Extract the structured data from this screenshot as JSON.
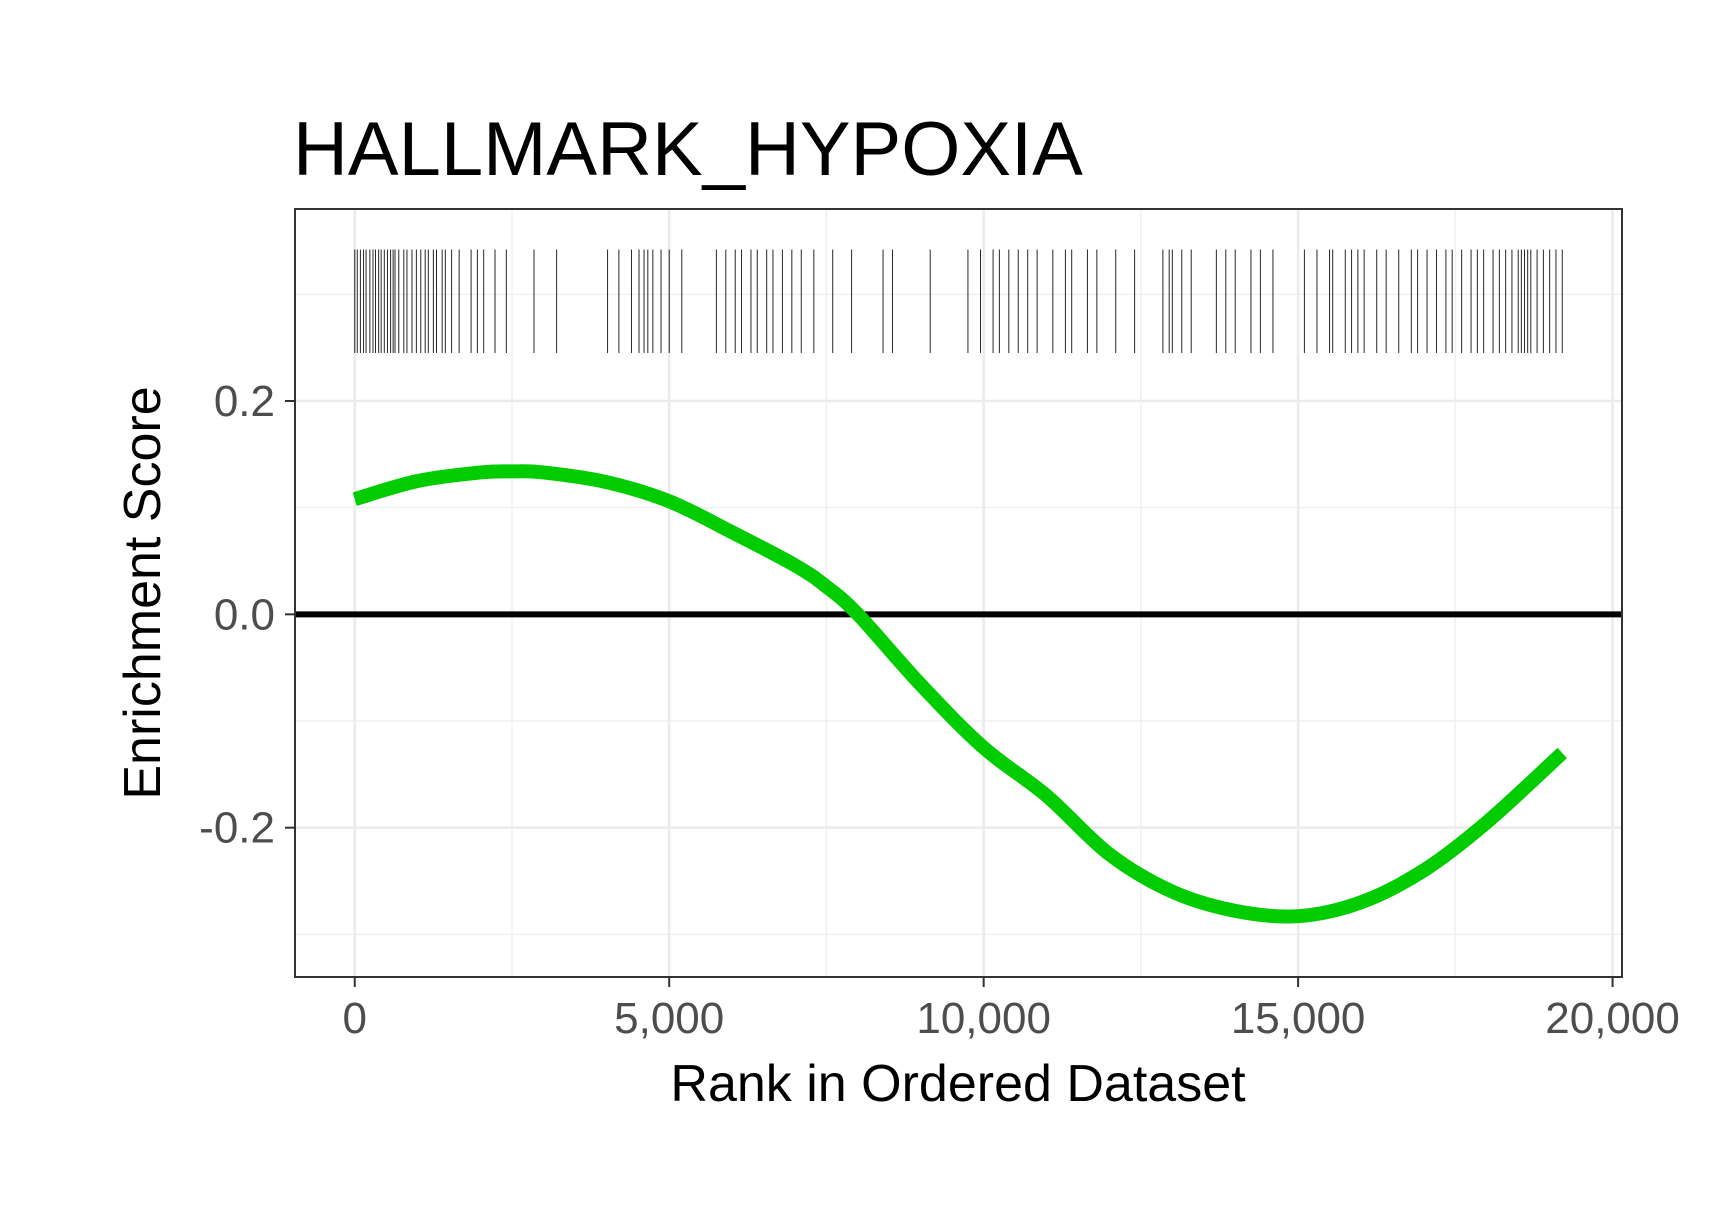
{
  "chart_data": {
    "type": "line",
    "title": "HALLMARK_HYPOXIA",
    "xlabel": "Rank in Ordered Dataset",
    "ylabel": "Enrichment Score",
    "xlim": [
      -950,
      20150
    ],
    "ylim": [
      -0.34,
      0.38
    ],
    "x_ticks": [
      0,
      5000,
      10000,
      15000,
      20000
    ],
    "x_tick_labels": [
      "0",
      "5,000",
      "10,000",
      "15,000",
      "20,000"
    ],
    "y_ticks": [
      -0.2,
      0.0,
      0.2
    ],
    "y_tick_labels": [
      "-0.2",
      "0.0",
      "0.2"
    ],
    "grid": true,
    "reference_line_y": 0,
    "series": [
      {
        "color": "#00cc00",
        "x": [
          0,
          1000,
          2000,
          2500,
          3000,
          4000,
          5000,
          6000,
          7000,
          7500,
          8000,
          9000,
          10000,
          11000,
          12000,
          13000,
          14000,
          15000,
          16000,
          17000,
          18000,
          19200
        ],
        "y": [
          0.108,
          0.125,
          0.133,
          0.134,
          0.133,
          0.124,
          0.106,
          0.077,
          0.046,
          0.026,
          0.0,
          -0.066,
          -0.125,
          -0.17,
          -0.225,
          -0.26,
          -0.278,
          -0.283,
          -0.27,
          -0.24,
          -0.195,
          -0.13
        ]
      }
    ],
    "gene_hits": {
      "ymin": 0.245,
      "ymax": 0.342,
      "color": "#000000",
      "positions": [
        0,
        40,
        90,
        140,
        180,
        240,
        290,
        330,
        380,
        420,
        470,
        520,
        570,
        610,
        640,
        700,
        780,
        830,
        910,
        980,
        1050,
        1120,
        1170,
        1250,
        1300,
        1390,
        1440,
        1540,
        1660,
        1850,
        1950,
        2050,
        2230,
        2410,
        2850,
        3210,
        4020,
        4200,
        4400,
        4520,
        4600,
        4660,
        4740,
        4870,
        5000,
        5200,
        5750,
        5900,
        6050,
        6150,
        6300,
        6400,
        6550,
        6650,
        6800,
        6950,
        7100,
        7300,
        7600,
        7900,
        8400,
        8550,
        9150,
        9750,
        9950,
        10150,
        10250,
        10400,
        10550,
        10700,
        10850,
        11100,
        11300,
        11400,
        11650,
        11800,
        12100,
        12400,
        12850,
        12950,
        13000,
        13150,
        13300,
        13700,
        13850,
        14000,
        14250,
        14400,
        14600,
        15100,
        15300,
        15500,
        15550,
        15750,
        15850,
        15950,
        16050,
        16250,
        16400,
        16600,
        16800,
        16900,
        17050,
        17200,
        17350,
        17450,
        17600,
        17750,
        17850,
        17950,
        18100,
        18200,
        18300,
        18400,
        18500,
        18550,
        18600,
        18650,
        18700,
        18800,
        18900,
        19000,
        19100,
        19200
      ]
    }
  }
}
